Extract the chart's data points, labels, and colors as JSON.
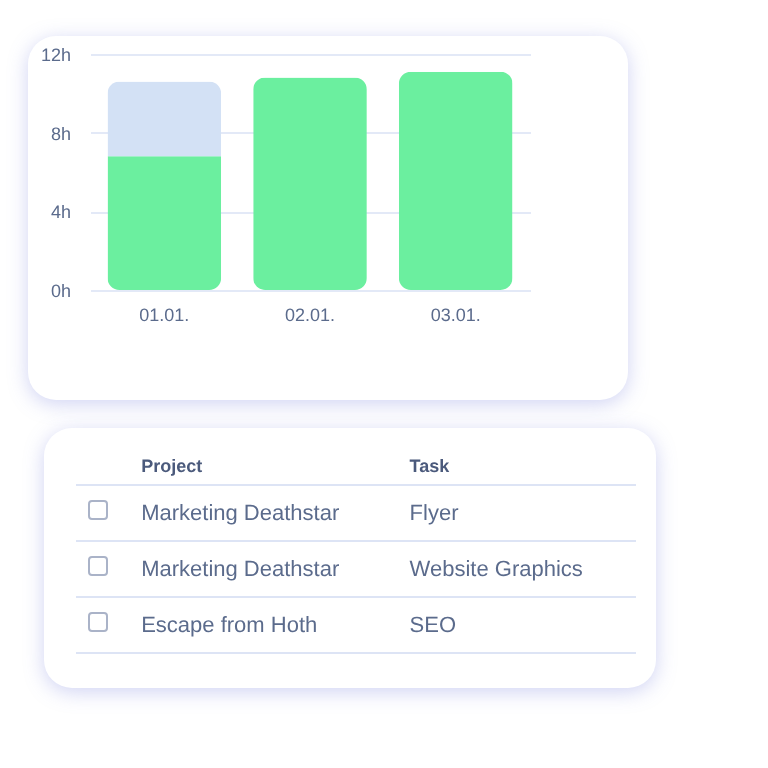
{
  "chart_data": [
    {
      "type": "bar",
      "categories": [
        "01.01.",
        "02.01.",
        "03.01."
      ],
      "stacked": true,
      "grid": "y",
      "series": [
        {
          "color": "#6bef9f",
          "values": [
            6.8,
            10.8,
            11.1
          ]
        },
        {
          "color": "#d3e1f5",
          "values": [
            3.8,
            0,
            0
          ]
        }
      ],
      "ylim": [
        0,
        12
      ],
      "yticks": [
        {
          "value": 0,
          "label": "0h"
        },
        {
          "value": 4,
          "label": "4h"
        },
        {
          "value": 8,
          "label": "8h"
        },
        {
          "value": 12,
          "label": "12h"
        }
      ]
    },
    {
      "type": "other",
      "categories": [
        "Project",
        "Task"
      ],
      "annotations": [
        "Marketing Deathstar",
        "Flyer",
        "Marketing Deathstar",
        "Website Graphics",
        "Escape from Hoth",
        "SEO"
      ]
    }
  ]
}
